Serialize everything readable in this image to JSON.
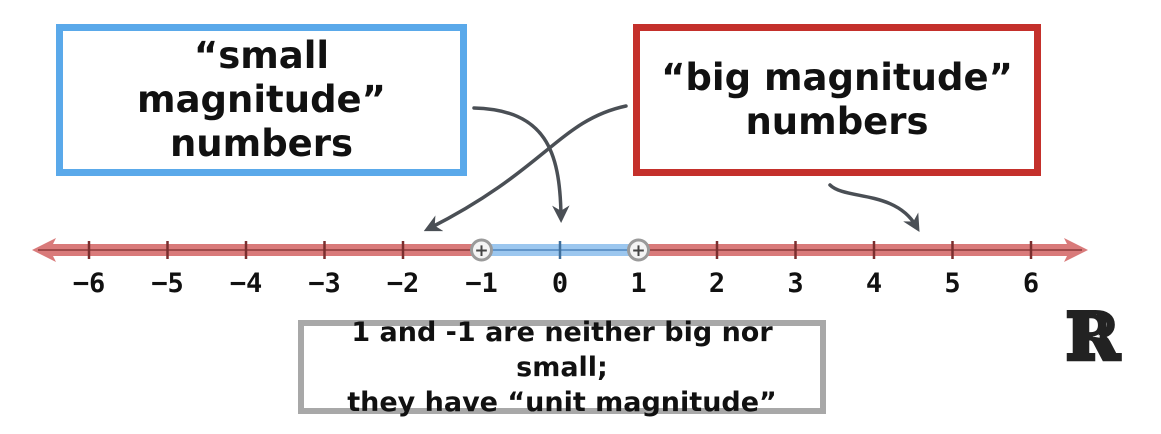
{
  "small_box": {
    "line1": "“small magnitude”",
    "line2": "numbers",
    "color": "#5aa9ea"
  },
  "big_box": {
    "line1": "“big magnitude”",
    "line2": "numbers",
    "color": "#c4302b"
  },
  "note_box": {
    "line1": "1 and -1 are neither big nor small;",
    "line2": "they have “unit magnitude”",
    "color": "#a8a8a8"
  },
  "reals_symbol": "ℝ",
  "number_line": {
    "min": -6,
    "max": 6,
    "ticks": [
      -6,
      -5,
      -4,
      -3,
      -2,
      -1,
      0,
      1,
      2,
      3,
      4,
      5,
      6
    ],
    "tick_labels": [
      "−6",
      "−5",
      "−4",
      "−3",
      "−2",
      "−1",
      "0",
      "1",
      "2",
      "3",
      "4",
      "5",
      "6"
    ],
    "unit_interval": [
      -1,
      1
    ],
    "endpoint_marker": "+",
    "big_color": "#d97a7a",
    "unit_color": "#9cc7ef"
  },
  "arrows": [
    {
      "from": "small_box",
      "to_value": 0
    },
    {
      "from": "big_box",
      "to_value": -1.8
    },
    {
      "from": "big_box",
      "to_value": 4.6
    }
  ]
}
